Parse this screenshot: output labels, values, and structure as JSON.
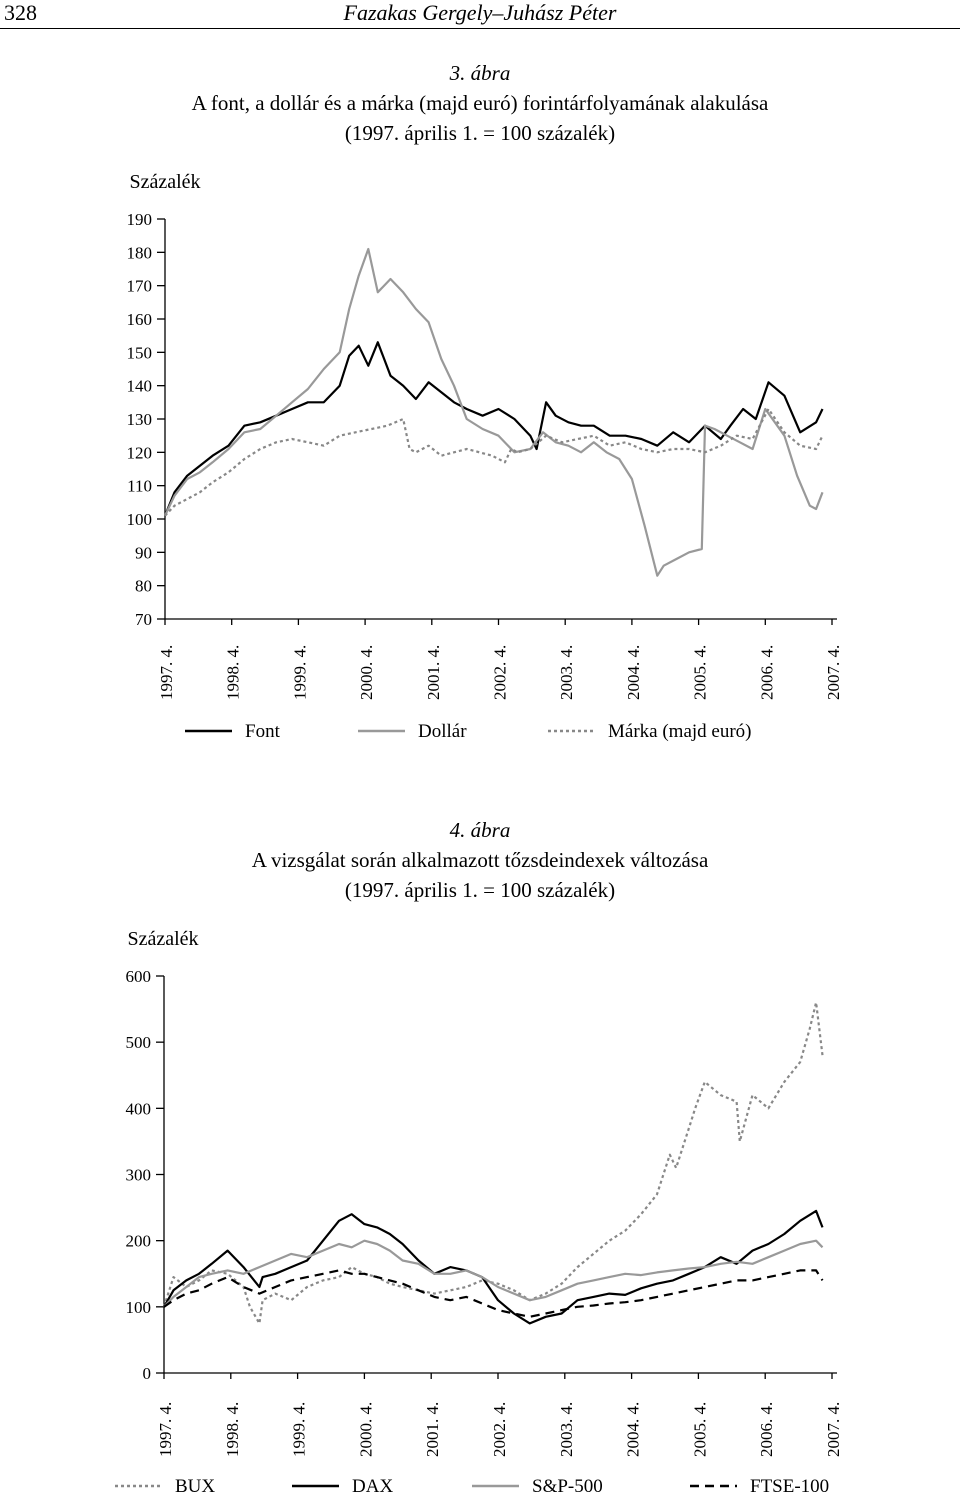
{
  "header": {
    "page_number": "328",
    "authors": "Fazakas Gergely–Juhász Péter"
  },
  "figure3": {
    "number": "3. ábra",
    "title": "A font, a dollár és a márka (majd euró) forintárfolyamának alakulása",
    "subtitle": "(1997. április 1. = 100 százalék)"
  },
  "figure4": {
    "number": "4. ábra",
    "title": "A vizsgálat során alkalmazott tőzsdeindexek változása",
    "subtitle": "(1997. április 1. = 100 százalék)"
  },
  "chart_data": [
    {
      "type": "line",
      "ylabel": "Százalék",
      "ylim": [
        70,
        190
      ],
      "yticks": [
        190,
        180,
        170,
        160,
        150,
        140,
        130,
        120,
        110,
        100,
        90,
        80,
        70
      ],
      "categories": [
        "1997. 4.",
        "1998. 4.",
        "1999. 4.",
        "2000. 4.",
        "2001. 4.",
        "2002. 4.",
        "2003. 4.",
        "2004. 4.",
        "2005. 4.",
        "2006. 4.",
        "2007. 4."
      ],
      "xlim": [
        1997.25,
        2007.75
      ],
      "legend_position": "bottom",
      "series": [
        {
          "name": "Font",
          "color": "#000000",
          "dash": "solid",
          "x": [
            1997.25,
            1997.4,
            1997.6,
            1997.8,
            1998.0,
            1998.25,
            1998.5,
            1998.75,
            1999.0,
            1999.25,
            1999.5,
            1999.75,
            2000.0,
            2000.15,
            2000.3,
            2000.45,
            2000.6,
            2000.8,
            2001.0,
            2001.2,
            2001.4,
            2001.6,
            2001.8,
            2002.0,
            2002.25,
            2002.5,
            2002.75,
            2003.0,
            2003.1,
            2003.25,
            2003.4,
            2003.6,
            2003.8,
            2004.0,
            2004.25,
            2004.5,
            2004.75,
            2005.0,
            2005.25,
            2005.5,
            2005.75,
            2006.0,
            2006.15,
            2006.35,
            2006.55,
            2006.75,
            2007.0,
            2007.25,
            2007.5,
            2007.6
          ],
          "values": [
            101,
            108,
            113,
            116,
            119,
            122,
            128,
            129,
            131,
            133,
            135,
            135,
            140,
            149,
            152,
            146,
            153,
            143,
            140,
            136,
            141,
            138,
            135,
            133,
            131,
            133,
            130,
            125,
            121,
            135,
            131,
            129,
            128,
            128,
            125,
            125,
            124,
            122,
            126,
            123,
            128,
            124,
            128,
            133,
            130,
            141,
            137,
            126,
            129,
            133
          ]
        },
        {
          "name": "Dollár",
          "color": "#999999",
          "dash": "solid",
          "x": [
            1997.25,
            1997.4,
            1997.6,
            1997.8,
            1998.0,
            1998.25,
            1998.5,
            1998.75,
            1999.0,
            1999.25,
            1999.5,
            1999.75,
            2000.0,
            2000.15,
            2000.3,
            2000.45,
            2000.6,
            2000.8,
            2001.0,
            2001.2,
            2001.4,
            2001.6,
            2001.8,
            2002.0,
            2002.25,
            2002.5,
            2002.75,
            2003.0,
            2003.2,
            2003.4,
            2003.6,
            2003.8,
            2004.0,
            2004.2,
            2004.4,
            2004.6,
            2004.8,
            2005.0,
            2005.1,
            2005.3,
            2005.5,
            2005.7,
            2005.75,
            2005.9,
            2006.1,
            2006.3,
            2006.5,
            2006.7,
            2007.0,
            2007.2,
            2007.4,
            2007.5,
            2007.6
          ],
          "values": [
            101,
            107,
            112,
            114,
            117,
            121,
            126,
            127,
            131,
            135,
            139,
            145,
            150,
            163,
            173,
            181,
            168,
            172,
            168,
            163,
            159,
            148,
            140,
            130,
            127,
            125,
            120,
            121,
            126,
            123,
            122,
            120,
            123,
            120,
            118,
            112,
            98,
            83,
            86,
            88,
            90,
            91,
            128,
            127,
            125,
            123,
            121,
            133,
            125,
            113,
            104,
            103,
            108
          ]
        },
        {
          "name": "Márka (majd euró)",
          "color": "#888888",
          "dash": "dotted",
          "x": [
            1997.25,
            1997.4,
            1997.6,
            1997.8,
            1998.0,
            1998.25,
            1998.5,
            1998.75,
            1999.0,
            1999.25,
            1999.5,
            1999.75,
            2000.0,
            2000.25,
            2000.5,
            2000.75,
            2001.0,
            2001.1,
            2001.2,
            2001.4,
            2001.6,
            2001.8,
            2002.0,
            2002.2,
            2002.4,
            2002.6,
            2002.7,
            2002.8,
            2003.0,
            2003.25,
            2003.5,
            2003.75,
            2004.0,
            2004.25,
            2004.5,
            2004.75,
            2005.0,
            2005.25,
            2005.5,
            2005.75,
            2006.0,
            2006.25,
            2006.5,
            2006.75,
            2007.0,
            2007.25,
            2007.5,
            2007.6
          ],
          "values": [
            101,
            104,
            106,
            108,
            111,
            114,
            118,
            121,
            123,
            124,
            123,
            122,
            125,
            126,
            127,
            128,
            130,
            121,
            120,
            122,
            119,
            120,
            121,
            120,
            119,
            117,
            121,
            120,
            121,
            125,
            123,
            124,
            125,
            122,
            123,
            121,
            120,
            121,
            121,
            120,
            122,
            125,
            124,
            133,
            126,
            122,
            121,
            125
          ]
        }
      ]
    },
    {
      "type": "line",
      "ylabel": "Százalék",
      "ylim": [
        0,
        600
      ],
      "yticks": [
        600,
        500,
        400,
        300,
        200,
        100,
        0
      ],
      "categories": [
        "1997. 4.",
        "1998. 4.",
        "1999. 4.",
        "2000. 4.",
        "2001. 4.",
        "2002. 4.",
        "2003. 4.",
        "2004. 4.",
        "2005. 4.",
        "2006. 4.",
        "2007. 4."
      ],
      "xlim": [
        1997.25,
        2007.75
      ],
      "legend_position": "bottom",
      "series": [
        {
          "name": "BUX",
          "color": "#888888",
          "dash": "dotted",
          "x": [
            1997.25,
            1997.4,
            1997.6,
            1997.8,
            1998.0,
            1998.25,
            1998.5,
            1998.6,
            1998.75,
            1998.8,
            1999.0,
            1999.25,
            1999.5,
            1999.75,
            2000.0,
            2000.2,
            2000.4,
            2000.6,
            2000.8,
            2001.0,
            2001.25,
            2001.5,
            2001.75,
            2002.0,
            2002.25,
            2002.5,
            2002.75,
            2003.0,
            2003.25,
            2003.5,
            2003.75,
            2004.0,
            2004.25,
            2004.5,
            2004.75,
            2005.0,
            2005.2,
            2005.3,
            2005.5,
            2005.6,
            2005.75,
            2006.0,
            2006.25,
            2006.3,
            2006.5,
            2006.75,
            2007.0,
            2007.25,
            2007.4,
            2007.5,
            2007.6
          ],
          "values": [
            100,
            145,
            130,
            140,
            155,
            150,
            130,
            100,
            75,
            110,
            120,
            110,
            130,
            140,
            145,
            160,
            150,
            145,
            135,
            130,
            125,
            120,
            125,
            130,
            140,
            135,
            125,
            110,
            120,
            135,
            160,
            180,
            200,
            215,
            240,
            270,
            330,
            310,
            370,
            400,
            440,
            420,
            410,
            350,
            420,
            400,
            440,
            470,
            520,
            560,
            480
          ]
        },
        {
          "name": "DAX",
          "color": "#000000",
          "dash": "solid",
          "x": [
            1997.25,
            1997.4,
            1997.6,
            1997.8,
            1998.0,
            1998.25,
            1998.5,
            1998.75,
            1998.8,
            1999.0,
            1999.25,
            1999.5,
            1999.75,
            2000.0,
            2000.2,
            2000.4,
            2000.6,
            2000.8,
            2001.0,
            2001.25,
            2001.5,
            2001.75,
            2002.0,
            2002.25,
            2002.5,
            2002.75,
            2003.0,
            2003.25,
            2003.5,
            2003.75,
            2004.0,
            2004.25,
            2004.5,
            2004.75,
            2005.0,
            2005.25,
            2005.5,
            2005.75,
            2006.0,
            2006.25,
            2006.5,
            2006.75,
            2007.0,
            2007.25,
            2007.5,
            2007.6
          ],
          "values": [
            100,
            125,
            140,
            150,
            165,
            185,
            160,
            130,
            145,
            150,
            160,
            170,
            200,
            230,
            240,
            225,
            220,
            210,
            195,
            170,
            150,
            160,
            155,
            145,
            110,
            90,
            75,
            85,
            90,
            110,
            115,
            120,
            118,
            128,
            135,
            140,
            150,
            160,
            175,
            165,
            185,
            195,
            210,
            230,
            245,
            220
          ]
        },
        {
          "name": "S&P-500",
          "color": "#999999",
          "dash": "solid",
          "x": [
            1997.25,
            1997.4,
            1997.6,
            1997.8,
            1998.0,
            1998.25,
            1998.5,
            1998.75,
            1999.0,
            1999.25,
            1999.5,
            1999.75,
            2000.0,
            2000.2,
            2000.4,
            2000.6,
            2000.8,
            2001.0,
            2001.25,
            2001.5,
            2001.75,
            2002.0,
            2002.25,
            2002.5,
            2002.75,
            2003.0,
            2003.25,
            2003.5,
            2003.75,
            2004.0,
            2004.25,
            2004.5,
            2004.75,
            2005.0,
            2005.25,
            2005.5,
            2005.75,
            2006.0,
            2006.25,
            2006.5,
            2006.75,
            2007.0,
            2007.25,
            2007.5,
            2007.6
          ],
          "values": [
            100,
            115,
            130,
            145,
            150,
            155,
            150,
            160,
            170,
            180,
            175,
            185,
            195,
            190,
            200,
            195,
            185,
            170,
            165,
            150,
            150,
            155,
            145,
            130,
            120,
            110,
            115,
            125,
            135,
            140,
            145,
            150,
            148,
            152,
            155,
            158,
            160,
            165,
            168,
            165,
            175,
            185,
            195,
            200,
            190
          ]
        },
        {
          "name": "FTSE-100",
          "color": "#000000",
          "dash": "dashed",
          "x": [
            1997.25,
            1997.4,
            1997.6,
            1997.8,
            1998.0,
            1998.25,
            1998.5,
            1998.75,
            1999.0,
            1999.25,
            1999.5,
            1999.75,
            2000.0,
            2000.2,
            2000.4,
            2000.6,
            2000.8,
            2001.0,
            2001.25,
            2001.5,
            2001.75,
            2002.0,
            2002.25,
            2002.5,
            2002.75,
            2003.0,
            2003.25,
            2003.5,
            2003.75,
            2004.0,
            2004.25,
            2004.5,
            2004.75,
            2005.0,
            2005.25,
            2005.5,
            2005.75,
            2006.0,
            2006.25,
            2006.5,
            2006.75,
            2007.0,
            2007.25,
            2007.5,
            2007.6
          ],
          "values": [
            100,
            110,
            120,
            125,
            135,
            145,
            130,
            120,
            130,
            140,
            145,
            150,
            155,
            150,
            150,
            145,
            140,
            135,
            125,
            115,
            110,
            115,
            105,
            95,
            90,
            85,
            90,
            95,
            100,
            102,
            105,
            107,
            110,
            115,
            120,
            125,
            130,
            135,
            140,
            140,
            145,
            150,
            155,
            155,
            140
          ]
        }
      ]
    }
  ]
}
